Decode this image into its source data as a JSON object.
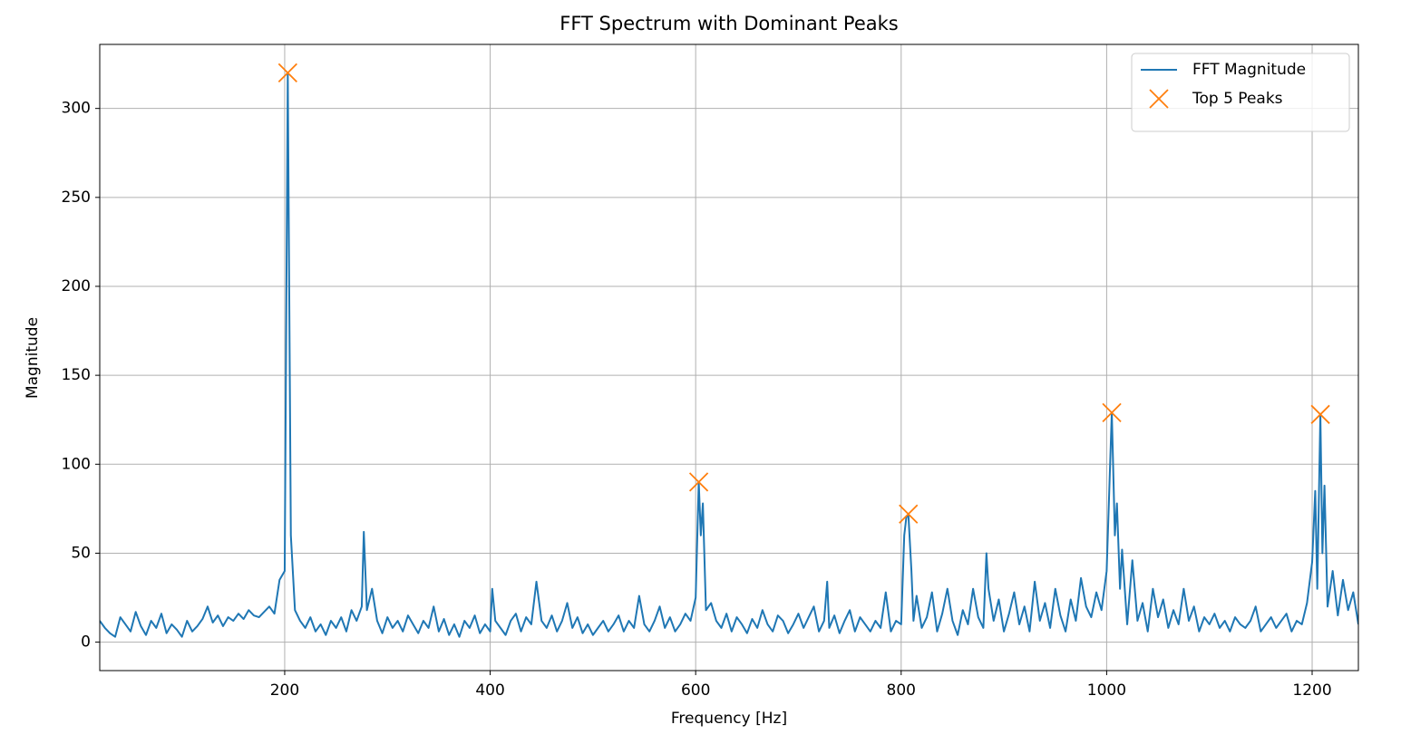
{
  "chart_data": {
    "type": "line",
    "title": "FFT Spectrum with Dominant Peaks",
    "x_label": "Frequency [Hz]",
    "y_label": "Magnitude",
    "xlim": [
      20,
      1245
    ],
    "ylim": [
      -16,
      336
    ],
    "xticks": [
      200,
      400,
      600,
      800,
      1000,
      1200
    ],
    "yticks": [
      0,
      50,
      100,
      150,
      200,
      250,
      300
    ],
    "grid": true,
    "legend": "upper right",
    "series": [
      {
        "name": "FFT Magnitude",
        "color": "#1f77b4",
        "style": "line",
        "x": [
          20,
          25,
          30,
          35,
          40,
          45,
          50,
          55,
          60,
          65,
          70,
          75,
          80,
          85,
          90,
          95,
          100,
          105,
          110,
          115,
          120,
          125,
          130,
          135,
          140,
          145,
          150,
          155,
          160,
          165,
          170,
          175,
          180,
          185,
          190,
          195,
          200,
          203,
          206,
          210,
          215,
          220,
          225,
          230,
          235,
          240,
          245,
          250,
          255,
          260,
          265,
          270,
          275,
          277,
          280,
          285,
          290,
          295,
          300,
          305,
          310,
          315,
          320,
          325,
          330,
          335,
          340,
          345,
          350,
          355,
          360,
          365,
          370,
          375,
          380,
          385,
          390,
          395,
          400,
          402,
          405,
          410,
          415,
          420,
          425,
          430,
          435,
          440,
          445,
          450,
          455,
          460,
          465,
          470,
          475,
          480,
          485,
          490,
          495,
          500,
          505,
          510,
          515,
          520,
          525,
          530,
          535,
          540,
          545,
          550,
          555,
          560,
          565,
          570,
          575,
          580,
          585,
          590,
          595,
          600,
          603,
          605,
          607,
          610,
          615,
          620,
          625,
          630,
          635,
          640,
          645,
          650,
          655,
          660,
          665,
          670,
          675,
          680,
          685,
          690,
          695,
          700,
          705,
          710,
          715,
          720,
          725,
          728,
          730,
          735,
          740,
          745,
          750,
          755,
          760,
          765,
          770,
          775,
          780,
          785,
          790,
          795,
          800,
          803,
          805,
          807,
          810,
          812,
          815,
          820,
          825,
          830,
          835,
          840,
          845,
          850,
          855,
          860,
          865,
          870,
          875,
          880,
          883,
          885,
          890,
          895,
          900,
          905,
          910,
          915,
          920,
          925,
          930,
          935,
          940,
          945,
          950,
          955,
          960,
          965,
          970,
          975,
          980,
          985,
          990,
          995,
          1000,
          1005,
          1008,
          1010,
          1013,
          1015,
          1020,
          1025,
          1030,
          1035,
          1040,
          1045,
          1050,
          1055,
          1060,
          1065,
          1070,
          1075,
          1080,
          1085,
          1090,
          1095,
          1100,
          1105,
          1110,
          1115,
          1120,
          1125,
          1130,
          1135,
          1140,
          1145,
          1150,
          1155,
          1160,
          1165,
          1170,
          1175,
          1180,
          1185,
          1190,
          1195,
          1200,
          1203,
          1205,
          1208,
          1210,
          1212,
          1215,
          1220,
          1225,
          1230,
          1235,
          1240,
          1245
        ],
        "values": [
          12,
          8,
          5,
          3,
          14,
          10,
          6,
          17,
          9,
          4,
          12,
          8,
          16,
          5,
          10,
          7,
          3,
          12,
          6,
          9,
          13,
          20,
          11,
          15,
          9,
          14,
          12,
          16,
          13,
          18,
          15,
          14,
          17,
          20,
          16,
          35,
          40,
          320,
          60,
          18,
          12,
          8,
          14,
          6,
          10,
          4,
          12,
          8,
          14,
          6,
          18,
          12,
          20,
          62,
          18,
          30,
          12,
          5,
          14,
          8,
          12,
          6,
          15,
          10,
          5,
          12,
          8,
          20,
          6,
          13,
          4,
          10,
          3,
          12,
          8,
          15,
          5,
          10,
          6,
          30,
          12,
          8,
          4,
          12,
          16,
          6,
          14,
          10,
          34,
          12,
          8,
          15,
          6,
          12,
          22,
          8,
          14,
          5,
          10,
          4,
          8,
          12,
          6,
          10,
          15,
          6,
          12,
          8,
          26,
          10,
          6,
          12,
          20,
          8,
          14,
          6,
          10,
          16,
          12,
          25,
          90,
          60,
          78,
          18,
          22,
          12,
          8,
          16,
          6,
          14,
          10,
          5,
          13,
          8,
          18,
          10,
          6,
          15,
          12,
          5,
          10,
          16,
          8,
          14,
          20,
          6,
          12,
          34,
          8,
          15,
          5,
          12,
          18,
          6,
          14,
          10,
          6,
          12,
          8,
          28,
          6,
          12,
          10,
          60,
          70,
          72,
          40,
          12,
          26,
          8,
          14,
          28,
          6,
          16,
          30,
          12,
          4,
          18,
          10,
          30,
          14,
          8,
          50,
          30,
          12,
          24,
          6,
          16,
          28,
          10,
          20,
          6,
          34,
          12,
          22,
          8,
          30,
          15,
          6,
          24,
          12,
          36,
          20,
          14,
          28,
          18,
          40,
          129,
          60,
          78,
          30,
          52,
          10,
          46,
          12,
          22,
          6,
          30,
          14,
          24,
          8,
          18,
          10,
          30,
          12,
          20,
          6,
          14,
          10,
          16,
          8,
          12,
          6,
          14,
          10,
          8,
          12,
          20,
          6,
          10,
          14,
          8,
          12,
          16,
          6,
          12,
          10,
          22,
          45,
          85,
          30,
          128,
          50,
          88,
          20,
          40,
          15,
          35,
          18,
          28,
          10
        ]
      },
      {
        "name": "Top 5 Peaks",
        "color": "#ff7f0e",
        "style": "marker",
        "x": [
          203,
          603,
          807,
          1005,
          1208
        ],
        "values": [
          320,
          90,
          72,
          129,
          128
        ]
      }
    ]
  }
}
